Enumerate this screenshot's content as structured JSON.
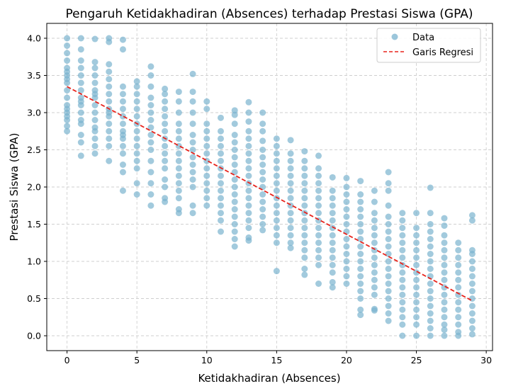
{
  "chart_data": {
    "type": "scatter",
    "title": "Pengaruh Ketidakhadiran (Absences) terhadap Prestasi Siswa (GPA)",
    "xlabel": "Ketidakhadiran (Absences)",
    "ylabel": "Prestasi Siswa (GPA)",
    "xlim": [
      -1.45,
      30.45
    ],
    "ylim": [
      -0.2,
      4.2
    ],
    "xticks": [
      0,
      5,
      10,
      15,
      20,
      25,
      30
    ],
    "yticks": [
      0.0,
      0.5,
      1.0,
      1.5,
      2.0,
      2.5,
      3.0,
      3.5,
      4.0
    ],
    "grid": true,
    "legend_position": "top-right",
    "legend": [
      "Data",
      "Garis Regresi"
    ],
    "colors": {
      "scatter": "#7ab3cf",
      "regression": "#e8231b",
      "grid": "#cfcfcf"
    },
    "series": [
      {
        "name": "Data",
        "kind": "scatter",
        "columns": [
          {
            "x": 0,
            "y": [
              2.75,
              2.82,
              2.9,
              3.0,
              3.1,
              3.2,
              3.3,
              3.4,
              3.5,
              3.6,
              3.7,
              3.8,
              3.9,
              4.0,
              3.45,
              3.05,
              2.95,
              3.55
            ]
          },
          {
            "x": 1,
            "y": [
              2.42,
              2.6,
              2.7,
              2.85,
              3.0,
              3.1,
              3.2,
              3.3,
              3.4,
              3.5,
              3.6,
              3.7,
              3.85,
              4.0,
              3.15,
              2.9
            ]
          },
          {
            "x": 2,
            "y": [
              2.45,
              2.55,
              2.65,
              2.8,
              2.9,
              3.0,
              3.1,
              3.2,
              3.3,
              3.4,
              3.5,
              3.6,
              3.68,
              3.99,
              2.75,
              3.25
            ]
          },
          {
            "x": 3,
            "y": [
              2.35,
              2.55,
              2.65,
              2.75,
              2.85,
              2.95,
              3.05,
              3.15,
              3.25,
              3.35,
              3.45,
              3.55,
              3.65,
              3.95,
              4.0,
              3.0
            ]
          },
          {
            "x": 4,
            "y": [
              1.95,
              2.2,
              2.3,
              2.45,
              2.55,
              2.65,
              2.75,
              2.85,
              2.95,
              3.05,
              3.15,
              3.25,
              3.35,
              3.85,
              3.98,
              2.7
            ]
          },
          {
            "x": 5,
            "y": [
              1.9,
              2.05,
              2.25,
              2.35,
              2.45,
              2.55,
              2.65,
              2.75,
              2.85,
              2.95,
              3.05,
              3.15,
              3.25,
              3.35,
              3.42
            ]
          },
          {
            "x": 6,
            "y": [
              1.75,
              1.9,
              2.05,
              2.2,
              2.35,
              2.5,
              2.6,
              2.7,
              2.8,
              2.9,
              3.0,
              3.1,
              3.2,
              3.35,
              3.5,
              3.62
            ]
          },
          {
            "x": 7,
            "y": [
              1.8,
              1.85,
              2.0,
              2.1,
              2.25,
              2.35,
              2.45,
              2.55,
              2.65,
              2.75,
              2.85,
              2.95,
              3.05,
              3.15,
              3.25,
              3.32
            ]
          },
          {
            "x": 8,
            "y": [
              1.65,
              1.7,
              1.85,
              1.95,
              2.05,
              2.15,
              2.25,
              2.35,
              2.45,
              2.55,
              2.65,
              2.75,
              2.85,
              3.0,
              3.15,
              3.28
            ]
          },
          {
            "x": 9,
            "y": [
              1.65,
              1.75,
              2.0,
              2.1,
              2.2,
              2.3,
              2.4,
              2.5,
              2.6,
              2.7,
              2.85,
              3.0,
              3.15,
              3.28,
              3.52
            ]
          },
          {
            "x": 10,
            "y": [
              1.75,
              1.85,
              1.95,
              2.05,
              2.15,
              2.25,
              2.35,
              2.45,
              2.55,
              2.65,
              2.75,
              2.85,
              3.05,
              3.15
            ]
          },
          {
            "x": 11,
            "y": [
              1.4,
              1.55,
              1.65,
              1.75,
              1.85,
              1.95,
              2.05,
              2.15,
              2.25,
              2.35,
              2.45,
              2.55,
              2.65,
              2.75,
              2.93
            ]
          },
          {
            "x": 12,
            "y": [
              1.2,
              1.3,
              1.4,
              1.5,
              1.6,
              1.7,
              1.8,
              1.9,
              2.0,
              2.1,
              2.2,
              2.3,
              2.4,
              2.5,
              2.6,
              2.7,
              2.85,
              2.97,
              3.03
            ]
          },
          {
            "x": 13,
            "y": [
              1.28,
              1.32,
              1.45,
              1.55,
              1.65,
              1.75,
              1.85,
              1.95,
              2.05,
              2.15,
              2.25,
              2.35,
              2.45,
              2.55,
              2.65,
              2.75,
              2.88,
              3.0,
              3.14
            ]
          },
          {
            "x": 14,
            "y": [
              1.42,
              1.5,
              1.6,
              1.7,
              1.8,
              1.9,
              2.0,
              2.1,
              2.2,
              2.3,
              2.4,
              2.5,
              2.62,
              2.75,
              2.85,
              3.0
            ]
          },
          {
            "x": 15,
            "y": [
              0.87,
              1.25,
              1.35,
              1.45,
              1.55,
              1.65,
              1.75,
              1.85,
              1.95,
              2.05,
              2.15,
              2.25,
              2.35,
              2.45,
              2.55,
              2.65
            ]
          },
          {
            "x": 16,
            "y": [
              1.18,
              1.25,
              1.35,
              1.45,
              1.55,
              1.65,
              1.75,
              1.85,
              1.95,
              2.05,
              2.15,
              2.25,
              2.35,
              2.45,
              2.63
            ]
          },
          {
            "x": 17,
            "y": [
              0.82,
              0.9,
              1.05,
              1.15,
              1.25,
              1.35,
              1.45,
              1.55,
              1.65,
              1.75,
              1.85,
              1.95,
              2.05,
              2.15,
              2.25,
              2.35,
              2.48
            ]
          },
          {
            "x": 18,
            "y": [
              0.7,
              0.95,
              1.05,
              1.15,
              1.25,
              1.35,
              1.45,
              1.55,
              1.65,
              1.75,
              1.85,
              1.95,
              2.05,
              2.15,
              2.25,
              2.42
            ]
          },
          {
            "x": 19,
            "y": [
              0.65,
              0.72,
              0.85,
              0.95,
              1.05,
              1.15,
              1.25,
              1.35,
              1.45,
              1.55,
              1.65,
              1.75,
              1.85,
              1.95,
              2.13
            ]
          },
          {
            "x": 20,
            "y": [
              0.7,
              0.8,
              0.9,
              1.0,
              1.1,
              1.2,
              1.3,
              1.4,
              1.5,
              1.6,
              1.7,
              1.8,
              1.9,
              2.0,
              2.12
            ]
          },
          {
            "x": 21,
            "y": [
              0.28,
              0.35,
              0.5,
              0.6,
              0.7,
              0.8,
              0.9,
              1.0,
              1.1,
              1.2,
              1.3,
              1.4,
              1.5,
              1.6,
              1.7,
              1.8,
              1.9,
              2.08
            ]
          },
          {
            "x": 22,
            "y": [
              0.34,
              0.36,
              0.55,
              0.65,
              0.75,
              0.85,
              0.95,
              1.05,
              1.15,
              1.25,
              1.35,
              1.45,
              1.55,
              1.65,
              1.8,
              1.95
            ]
          },
          {
            "x": 23,
            "y": [
              0.2,
              0.3,
              0.4,
              0.5,
              0.6,
              0.7,
              0.8,
              0.9,
              1.0,
              1.1,
              1.2,
              1.3,
              1.4,
              1.5,
              1.6,
              1.75,
              1.95,
              2.05,
              2.2
            ]
          },
          {
            "x": 24,
            "y": [
              0.0,
              0.15,
              0.25,
              0.35,
              0.45,
              0.55,
              0.65,
              0.75,
              0.85,
              0.95,
              1.05,
              1.15,
              1.25,
              1.35,
              1.45,
              1.55,
              1.65
            ]
          },
          {
            "x": 25,
            "y": [
              0.0,
              0.15,
              0.25,
              0.35,
              0.45,
              0.55,
              0.65,
              0.75,
              0.85,
              0.95,
              1.05,
              1.15,
              1.25,
              1.35,
              1.45,
              1.65
            ]
          },
          {
            "x": 26,
            "y": [
              0.0,
              0.1,
              0.2,
              0.3,
              0.4,
              0.5,
              0.6,
              0.7,
              0.8,
              0.9,
              1.0,
              1.1,
              1.2,
              1.3,
              1.4,
              1.5,
              1.65,
              1.99
            ]
          },
          {
            "x": 27,
            "y": [
              0.0,
              0.08,
              0.15,
              0.25,
              0.35,
              0.45,
              0.55,
              0.65,
              0.75,
              0.85,
              0.95,
              1.05,
              1.15,
              1.25,
              1.35,
              1.48,
              1.58
            ]
          },
          {
            "x": 28,
            "y": [
              0.0,
              0.05,
              0.15,
              0.25,
              0.35,
              0.45,
              0.55,
              0.65,
              0.75,
              0.85,
              0.95,
              1.05,
              1.15,
              1.25
            ]
          },
          {
            "x": 29,
            "y": [
              0.02,
              0.1,
              0.2,
              0.3,
              0.4,
              0.5,
              0.6,
              0.7,
              0.8,
              0.9,
              1.0,
              1.1,
              1.15,
              1.55,
              1.62
            ]
          }
        ]
      },
      {
        "name": "Garis Regresi",
        "kind": "line",
        "x": [
          0,
          29
        ],
        "y": [
          3.35,
          0.47
        ]
      }
    ]
  }
}
